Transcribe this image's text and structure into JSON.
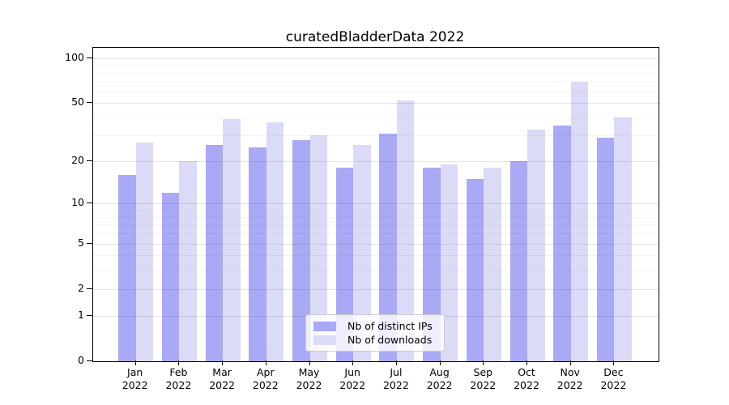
{
  "title": "curatedBladderData 2022",
  "chart_data": {
    "type": "bar",
    "categories": [
      "Jan",
      "Feb",
      "Mar",
      "Apr",
      "May",
      "Jun",
      "Jul",
      "Aug",
      "Sep",
      "Oct",
      "Nov",
      "Dec"
    ],
    "year_label": "2022",
    "series": [
      {
        "name": "Nb of distinct IPs",
        "slug": "distinct-ips",
        "color": "#a9a9f5",
        "values": [
          16,
          12,
          26,
          25,
          28,
          18,
          31,
          18,
          15,
          20,
          35,
          29
        ]
      },
      {
        "name": "Nb of downloads",
        "slug": "downloads",
        "color": "#dbdbf8",
        "values": [
          27,
          20,
          39,
          37,
          30,
          26,
          52,
          19,
          18,
          33,
          69,
          40
        ]
      }
    ],
    "y_scale": "log1p",
    "y_ticks": [
      0,
      1,
      2,
      5,
      10,
      20,
      50,
      100
    ],
    "y_minor_gridlines": [
      3,
      4,
      6,
      7,
      8,
      9,
      30,
      40,
      60,
      70,
      80,
      90
    ],
    "ylim": [
      0,
      117
    ],
    "xlabel": "",
    "ylabel": "",
    "grid": "horizontal",
    "legend_position": "lower-center-inside"
  }
}
